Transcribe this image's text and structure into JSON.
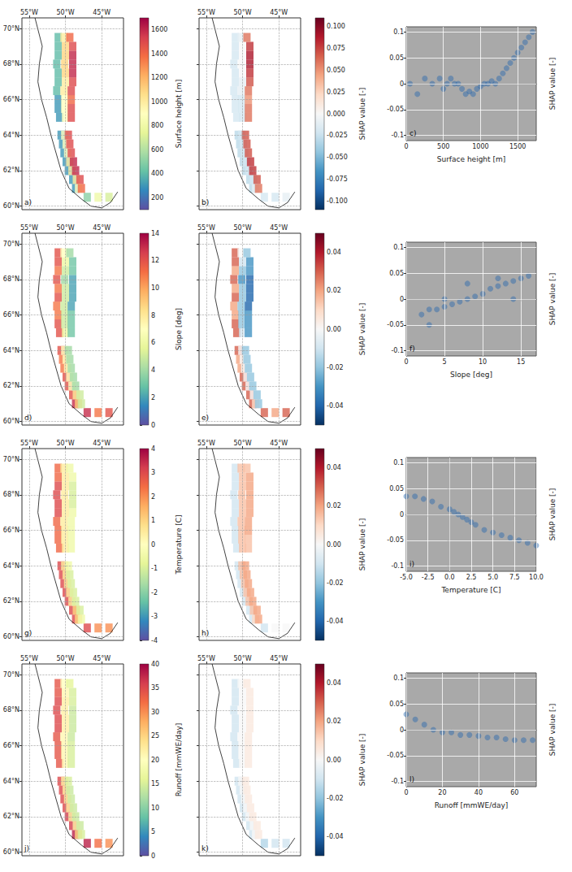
{
  "chart_data": {
    "type": "figure",
    "map": {
      "xlim": [
        -56,
        -42
      ],
      "xticks": [
        {
          "value": -55,
          "label": "55°W"
        },
        {
          "value": -50,
          "label": "50°W"
        },
        {
          "value": -45,
          "label": "45°W"
        }
      ],
      "ylim": [
        59.8,
        70.6
      ],
      "yticks": [
        {
          "value": 60,
          "label": "60°N"
        },
        {
          "value": 62,
          "label": "62°N"
        },
        {
          "value": 64,
          "label": "64°N"
        },
        {
          "value": 66,
          "label": "66°N"
        },
        {
          "value": 68,
          "label": "68°N"
        },
        {
          "value": 70,
          "label": "70°N"
        }
      ],
      "grid": true,
      "x": [
        -47,
        -45.5,
        -44,
        -48.6,
        -48.2,
        -47.8,
        -49,
        -48.5,
        -48,
        -49.6,
        -49.1,
        -48.6,
        -49.9,
        -49.4,
        -48.9,
        -50.2,
        -49.7,
        -49.2,
        -50.4,
        -49.9,
        -49.4,
        -50.6,
        -50.1,
        -49.6,
        -50.8,
        -50,
        -49.2,
        -51,
        -50.1,
        -49.2,
        -51,
        -50.1,
        -49.2,
        -51.2,
        -50.2,
        -49.2,
        -51,
        -50,
        -49,
        -51,
        -50,
        -49,
        -51.2,
        -50.1,
        -49,
        -51,
        -50,
        -49,
        -51,
        -50,
        -49,
        -51,
        -50.2,
        -49.4
      ],
      "y": [
        60.5,
        60.5,
        60.5,
        61,
        61,
        61,
        61.5,
        61.5,
        61.5,
        62,
        62,
        62,
        62.5,
        62.5,
        62.5,
        63,
        63,
        63,
        63.5,
        63.5,
        63.5,
        64,
        64,
        64,
        65,
        65,
        65,
        65.5,
        65.5,
        65.5,
        66,
        66,
        66,
        66.5,
        66.5,
        66.5,
        67,
        67,
        67,
        67.5,
        67.5,
        67.5,
        68,
        68,
        68,
        68.5,
        68.5,
        68.5,
        69,
        69,
        69,
        69.5,
        69.5,
        69.5
      ],
      "coast": {
        "x": [
          -54.2,
          -53.2,
          -53.6,
          -53.8,
          -53.3,
          -52.6,
          -52,
          -51.3,
          -50.6,
          -49.5,
          -47.8,
          -46.5,
          -45,
          -43.8,
          -42.8
        ],
        "y": [
          70.6,
          69,
          68,
          67,
          66,
          65,
          64,
          63,
          62,
          61,
          60.4,
          60,
          59.9,
          60.2,
          60.8
        ]
      }
    },
    "panels": [
      {
        "type": "map",
        "letter": "a)",
        "label": "Surface height [m]",
        "values": [
          500,
          800,
          700,
          300,
          900,
          1400,
          300,
          1000,
          1500,
          300,
          1000,
          1600,
          300,
          1000,
          1600,
          300,
          900,
          1500,
          300,
          900,
          1500,
          300,
          900,
          1500,
          300,
          900,
          1500,
          300,
          900,
          1500,
          300,
          900,
          1400,
          400,
          1000,
          1500,
          400,
          1000,
          1500,
          400,
          1100,
          1600,
          400,
          1100,
          1600,
          400,
          1100,
          1600,
          400,
          1100,
          1500,
          400,
          1000,
          1400
        ],
        "colorbar": {
          "range": [
            100,
            1700
          ],
          "ticks": [
            200,
            400,
            600,
            800,
            1000,
            1200,
            1400,
            1600
          ]
        }
      },
      {
        "type": "map",
        "letter": "b)",
        "label": "SHAP value [-]",
        "tick_labels": "x",
        "values": [
          -0.02,
          -0.02,
          -0.01,
          -0.03,
          -0.01,
          0.06,
          -0.03,
          -0.02,
          0.07,
          -0.03,
          -0.02,
          0.08,
          -0.03,
          -0.02,
          0.08,
          -0.03,
          -0.02,
          0.07,
          -0.03,
          -0.02,
          0.07,
          -0.03,
          -0.02,
          0.07,
          -0.02,
          -0.02,
          0.06,
          -0.02,
          -0.02,
          0.06,
          -0.02,
          -0.02,
          0.05,
          -0.02,
          -0.01,
          0.06,
          -0.02,
          -0.01,
          0.07,
          -0.02,
          0,
          0.08,
          -0.02,
          0,
          0.09,
          -0.02,
          0,
          0.09,
          -0.02,
          0,
          0.08,
          -0.02,
          -0.01,
          0.06
        ],
        "colorbar": {
          "range": [
            -0.11,
            0.11
          ],
          "ticks": [
            {
              "value": -0.1,
              "label": "-0.100"
            },
            {
              "value": -0.075,
              "label": "-0.075"
            },
            {
              "value": -0.05,
              "label": "-0.050"
            },
            {
              "value": -0.025,
              "label": "-0.025"
            },
            {
              "value": 0,
              "label": "0.000"
            },
            {
              "value": 0.025,
              "label": "0.025"
            },
            {
              "value": 0.05,
              "label": "0.050"
            },
            {
              "value": 0.075,
              "label": "0.075"
            },
            {
              "value": 0.1,
              "label": "0.100"
            }
          ]
        }
      },
      {
        "type": "scatter",
        "letter": "c)",
        "xlabel": "Surface height [m]",
        "ylabel": "SHAP value [-]",
        "color": "#2565ae",
        "grid": true,
        "xlim": [
          0,
          1750
        ],
        "xticks": [
          0,
          500,
          1000,
          1500
        ],
        "ylim": [
          -0.11,
          0.11
        ],
        "yticks": [
          -0.1,
          -0.05,
          0,
          0.05,
          0.1
        ],
        "x": [
          50,
          150,
          250,
          350,
          450,
          500,
          550,
          600,
          650,
          700,
          750,
          800,
          850,
          900,
          950,
          1000,
          1050,
          1100,
          1150,
          1200,
          1250,
          1300,
          1350,
          1400,
          1450,
          1500,
          1550,
          1600,
          1650,
          1700
        ],
        "y": [
          0,
          -0.02,
          0.01,
          0,
          0.01,
          -0.01,
          0,
          0.01,
          0,
          0,
          -0.01,
          -0.02,
          -0.015,
          -0.02,
          -0.01,
          -0.005,
          0,
          0,
          0.005,
          0,
          0.01,
          0.02,
          0.03,
          0.04,
          0.05,
          0.06,
          0.07,
          0.08,
          0.09,
          0.1
        ]
      },
      {
        "type": "map",
        "letter": "d)",
        "label": "Slope [deg]",
        "values": [
          13,
          11,
          12,
          13,
          9,
          5,
          12,
          8,
          5,
          12,
          7,
          4,
          12,
          7,
          4,
          11,
          7,
          4,
          11,
          7,
          4,
          12,
          7,
          4,
          12,
          6,
          3,
          12,
          5,
          3,
          11,
          5,
          3,
          11,
          5,
          2,
          12,
          5,
          2,
          11,
          5,
          2,
          12,
          4,
          2,
          11,
          5,
          3,
          12,
          6,
          3,
          12,
          7,
          4
        ],
        "colorbar": {
          "range": [
            0,
            14
          ],
          "ticks": [
            0,
            2,
            4,
            6,
            8,
            10,
            12,
            14
          ]
        }
      },
      {
        "type": "map",
        "letter": "e)",
        "label": "SHAP value [-]",
        "tick_labels": "x",
        "values": [
          0.03,
          0.02,
          0.03,
          0.03,
          0.01,
          -0.02,
          0.03,
          0,
          -0.02,
          0.03,
          0,
          -0.02,
          0.03,
          0,
          -0.02,
          0.02,
          0,
          -0.02,
          0.02,
          0,
          -0.02,
          0.03,
          0,
          -0.02,
          0.03,
          -0.01,
          -0.03,
          0.03,
          -0.02,
          -0.03,
          0.02,
          -0.02,
          -0.03,
          0.02,
          -0.02,
          -0.04,
          0.03,
          -0.02,
          -0.04,
          0.02,
          -0.02,
          -0.04,
          0.03,
          -0.03,
          -0.04,
          0.02,
          -0.02,
          -0.03,
          0.03,
          -0.01,
          -0.03,
          0.03,
          0,
          -0.02
        ],
        "colorbar": {
          "range": [
            -0.05,
            0.05
          ],
          "ticks": [
            -0.04,
            -0.02,
            {
              "value": 0,
              "label": "0.00"
            },
            0.02,
            0.04
          ]
        }
      },
      {
        "type": "scatter",
        "letter": "f)",
        "xlabel": "Slope [deg]",
        "ylabel": "SHAP value [-]",
        "color": "#2565ae",
        "grid": true,
        "xlim": [
          0,
          17
        ],
        "xticks": [
          0,
          5,
          10,
          15
        ],
        "ylim": [
          -0.11,
          0.11
        ],
        "yticks": [
          -0.1,
          -0.05,
          0,
          0.05,
          0.1
        ],
        "x": [
          2,
          3,
          4,
          5,
          6,
          7,
          8,
          9,
          10,
          11,
          12,
          13,
          14,
          15,
          16,
          3,
          5,
          8,
          12,
          14
        ],
        "y": [
          -0.03,
          -0.02,
          -0.02,
          -0.015,
          -0.01,
          -0.005,
          0,
          0.005,
          0.01,
          0.02,
          0.025,
          0.03,
          0.035,
          0.04,
          0.045,
          -0.05,
          0,
          0.03,
          0.04,
          0
        ]
      },
      {
        "type": "map",
        "letter": "g)",
        "label": "Temperature [C]",
        "values": [
          3,
          2,
          2,
          3,
          1,
          -0.5,
          3,
          1,
          -1,
          3,
          0.5,
          -1,
          3,
          0.5,
          -1,
          3,
          0.5,
          -1,
          3,
          0.5,
          -1,
          3,
          0.5,
          -0.5,
          2.5,
          0.5,
          -0.5,
          2.5,
          0.5,
          -0.5,
          2.5,
          0.5,
          -0.5,
          2.5,
          0.5,
          -0.5,
          3,
          0.5,
          -0.5,
          3,
          0.5,
          -1,
          3,
          0.5,
          -1,
          3,
          0.5,
          -1,
          2.5,
          0.5,
          -0.5,
          2.5,
          0.5,
          -0.5
        ],
        "colorbar": {
          "range": [
            -4,
            4
          ],
          "ticks": [
            -4,
            -3,
            -2,
            -1,
            0,
            1,
            2,
            3,
            4
          ]
        }
      },
      {
        "type": "map",
        "letter": "h)",
        "label": "SHAP value [-]",
        "tick_labels": "x",
        "values": [
          -0.01,
          0,
          0,
          -0.01,
          0.01,
          0.02,
          -0.01,
          0.015,
          0.02,
          -0.01,
          0.015,
          0.02,
          -0.01,
          0.015,
          0.02,
          -0.01,
          0.015,
          0.02,
          -0.01,
          0.015,
          0.02,
          -0.01,
          0.015,
          0.02,
          -0.01,
          0.015,
          0.015,
          -0.01,
          0.015,
          0.015,
          -0.01,
          0.015,
          0.02,
          -0.01,
          0.015,
          0.02,
          -0.01,
          0.015,
          0.02,
          -0.01,
          0.015,
          0.02,
          -0.01,
          0.015,
          0.02,
          -0.01,
          0.015,
          0.02,
          -0.01,
          0.015,
          0.02,
          -0.01,
          0.015,
          0.015
        ],
        "colorbar": {
          "range": [
            -0.05,
            0.05
          ],
          "ticks": [
            -0.04,
            -0.02,
            {
              "value": 0,
              "label": "0.00"
            },
            0.02,
            0.04
          ]
        }
      },
      {
        "type": "scatter",
        "letter": "i)",
        "xlabel": "Temperature [C]",
        "ylabel": "SHAP value [-]",
        "color": "#2565ae",
        "grid": true,
        "xlim": [
          -5,
          10
        ],
        "xticks": [
          {
            "value": -5,
            "label": "-5.0"
          },
          -2.5,
          {
            "value": 0,
            "label": "0.0"
          },
          2.5,
          {
            "value": 5,
            "label": "5.0"
          },
          7.5,
          {
            "value": 10,
            "label": "10.0"
          }
        ],
        "ylim": [
          -0.11,
          0.11
        ],
        "yticks": [
          -0.1,
          -0.05,
          0,
          0.05,
          0.1
        ],
        "x": [
          -5,
          -4,
          -3,
          -2,
          -1,
          0,
          0.5,
          1,
          1.5,
          2,
          2.5,
          3,
          4,
          5,
          6,
          7,
          8,
          9,
          10
        ],
        "y": [
          0.035,
          0.035,
          0.03,
          0.025,
          0.015,
          0.01,
          0.005,
          0,
          -0.005,
          -0.01,
          -0.015,
          -0.02,
          -0.03,
          -0.035,
          -0.04,
          -0.045,
          -0.05,
          -0.055,
          -0.06
        ]
      },
      {
        "type": "map",
        "letter": "j)",
        "label": "Runoff [mmWE/day]",
        "values": [
          38,
          32,
          30,
          38,
          25,
          15,
          36,
          22,
          14,
          36,
          22,
          14,
          35,
          22,
          14,
          35,
          22,
          14,
          35,
          22,
          14,
          35,
          22,
          15,
          34,
          21,
          15,
          34,
          21,
          15,
          34,
          21,
          15,
          34,
          21,
          14,
          35,
          22,
          14,
          35,
          22,
          14,
          35,
          22,
          14,
          35,
          22,
          15,
          34,
          21,
          15,
          34,
          20,
          16
        ],
        "colorbar": {
          "range": [
            0,
            40
          ],
          "ticks": [
            0,
            5,
            10,
            15,
            20,
            25,
            30,
            35,
            40
          ]
        }
      },
      {
        "type": "map",
        "letter": "k)",
        "label": "SHAP value [-]",
        "tick_labels": "x",
        "values": [
          -0.015,
          -0.01,
          -0.01,
          -0.01,
          0,
          0.005,
          -0.01,
          0,
          0.005,
          -0.01,
          0,
          0.005,
          -0.01,
          0,
          0.005,
          -0.01,
          0,
          0.005,
          -0.01,
          0,
          0.005,
          -0.01,
          0,
          0.005,
          -0.01,
          0,
          0.005,
          -0.01,
          0,
          0.005,
          -0.01,
          0,
          0.005,
          -0.01,
          0,
          0.005,
          -0.01,
          0,
          0.005,
          -0.01,
          0,
          0.005,
          -0.01,
          0,
          0.005,
          -0.01,
          0,
          0.005,
          -0.01,
          0,
          0.005,
          -0.01,
          0,
          0.005
        ],
        "colorbar": {
          "range": [
            -0.05,
            0.05
          ],
          "ticks": [
            -0.04,
            -0.02,
            {
              "value": 0,
              "label": "0.00"
            },
            0.02,
            0.04
          ]
        }
      },
      {
        "type": "scatter",
        "letter": "l)",
        "xlabel": "Runoff [mmWE/day]",
        "ylabel": "SHAP value [-]",
        "color": "#2565ae",
        "grid": true,
        "xlim": [
          0,
          72
        ],
        "xticks": [
          0,
          20,
          40,
          60
        ],
        "ylim": [
          -0.11,
          0.11
        ],
        "yticks": [
          -0.1,
          -0.05,
          0,
          0.05,
          0.1
        ],
        "x": [
          0,
          5,
          10,
          15,
          20,
          25,
          30,
          35,
          40,
          45,
          50,
          55,
          60,
          65,
          70
        ],
        "y": [
          0.03,
          0.02,
          0.01,
          0,
          -0.005,
          -0.005,
          -0.01,
          -0.01,
          -0.012,
          -0.015,
          -0.015,
          -0.018,
          -0.02,
          -0.02,
          -0.02
        ]
      }
    ]
  }
}
